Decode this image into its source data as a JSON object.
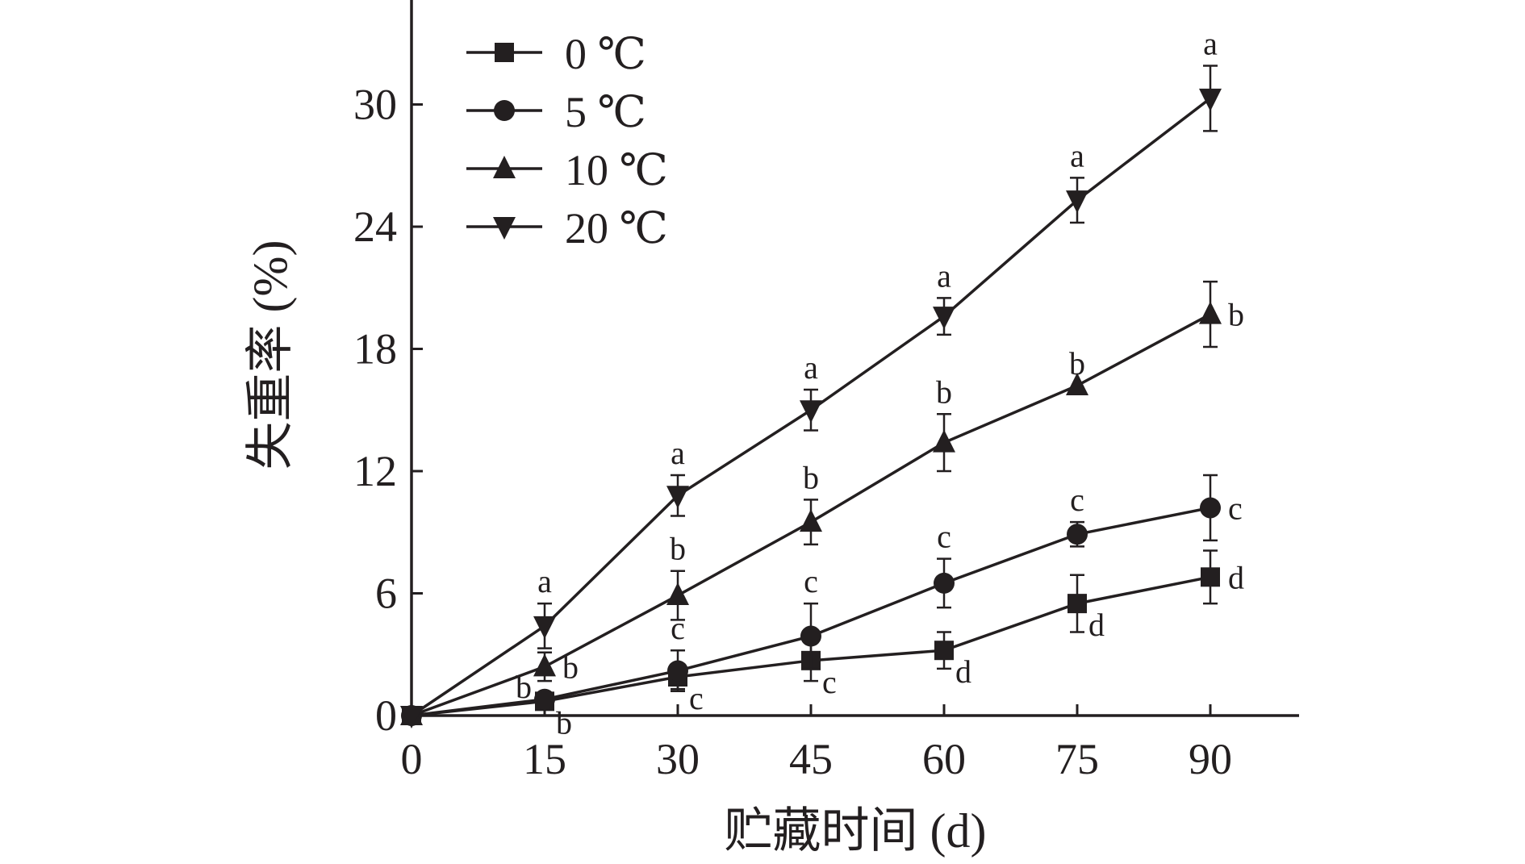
{
  "chart_data": {
    "type": "line",
    "title": "",
    "xlabel": "贮藏时间 (d)",
    "ylabel": "失重率 (%)",
    "x": [
      0,
      15,
      30,
      45,
      60,
      75,
      90
    ],
    "x_ticks": [
      "0",
      "15",
      "30",
      "45",
      "60",
      "75",
      "90"
    ],
    "y_ticks": [
      "0",
      "6",
      "12",
      "18",
      "24",
      "30"
    ],
    "xlim": [
      0,
      100
    ],
    "ylim": [
      0,
      34.5
    ],
    "grid": false,
    "legend_position": "top-left",
    "line_color": "#231f20",
    "series": [
      {
        "name": "0 ℃",
        "marker": "square",
        "values": [
          0,
          0.7,
          1.9,
          2.7,
          3.2,
          5.5,
          6.8
        ],
        "errors": [
          0,
          0.4,
          0.6,
          1.0,
          0.9,
          1.4,
          1.3
        ],
        "letters": [
          "",
          "b",
          "c",
          "c",
          "d",
          "d",
          "d"
        ],
        "label_side": [
          "",
          "right-below",
          "right-below",
          "right-below",
          "right-below",
          "right-below",
          "right"
        ]
      },
      {
        "name": "5 ℃",
        "marker": "circle",
        "values": [
          0,
          0.8,
          2.2,
          3.9,
          6.5,
          8.9,
          10.2
        ],
        "errors": [
          0,
          0.3,
          1.0,
          1.6,
          1.2,
          0.6,
          1.6
        ],
        "letters": [
          "",
          "b",
          "c",
          "c",
          "c",
          "c",
          "c"
        ],
        "label_side": [
          "",
          "left",
          "above",
          "above",
          "above",
          "above",
          "right"
        ]
      },
      {
        "name": "10 ℃",
        "marker": "triangle-up",
        "values": [
          0,
          2.4,
          5.9,
          9.5,
          13.4,
          16.2,
          19.7
        ],
        "errors": [
          0,
          0.7,
          1.2,
          1.1,
          1.4,
          0,
          1.6
        ],
        "letters": [
          "",
          "b",
          "b",
          "b",
          "b",
          "b",
          "b"
        ],
        "label_side": [
          "",
          "right",
          "above",
          "above",
          "above",
          "above",
          "right"
        ]
      },
      {
        "name": "20 ℃",
        "marker": "triangle-down",
        "values": [
          0,
          4.4,
          10.8,
          15.0,
          19.6,
          25.3,
          30.3
        ],
        "errors": [
          0,
          1.1,
          1.0,
          1.0,
          0.9,
          1.1,
          1.6
        ],
        "letters": [
          "",
          "a",
          "a",
          "a",
          "a",
          "a",
          "a"
        ],
        "label_side": [
          "",
          "above",
          "above",
          "above",
          "above",
          "above",
          "above"
        ]
      }
    ]
  }
}
